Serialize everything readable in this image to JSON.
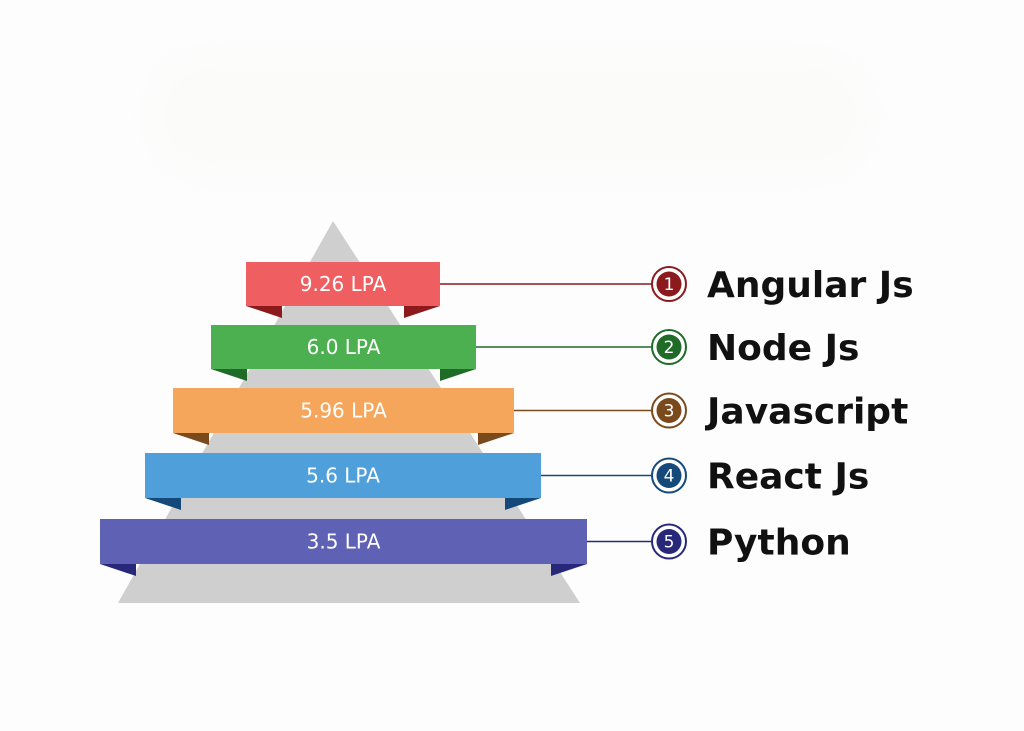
{
  "tiers": [
    {
      "rank": "1",
      "salary": "9.26 LPA",
      "name": "Angular Js",
      "color": "#ef5f61",
      "dark": "#8c1a1c"
    },
    {
      "rank": "2",
      "salary": "6.0 LPA",
      "name": "Node Js",
      "color": "#4caf50",
      "dark": "#1f6b27"
    },
    {
      "rank": "3",
      "salary": "5.96 LPA",
      "name": "Javascript",
      "color": "#f5a65b",
      "dark": "#7a4a1c"
    },
    {
      "rank": "4",
      "salary": "5.6 LPA",
      "name": "React Js",
      "color": "#4f9fdb",
      "dark": "#14497a"
    },
    {
      "rank": "5",
      "salary": "3.5 LPA",
      "name": "Python",
      "color": "#5f62b4",
      "dark": "#27287a"
    }
  ],
  "colors": {
    "pyramid": "#cfcfcf",
    "badge_fill": "#ffffff"
  }
}
